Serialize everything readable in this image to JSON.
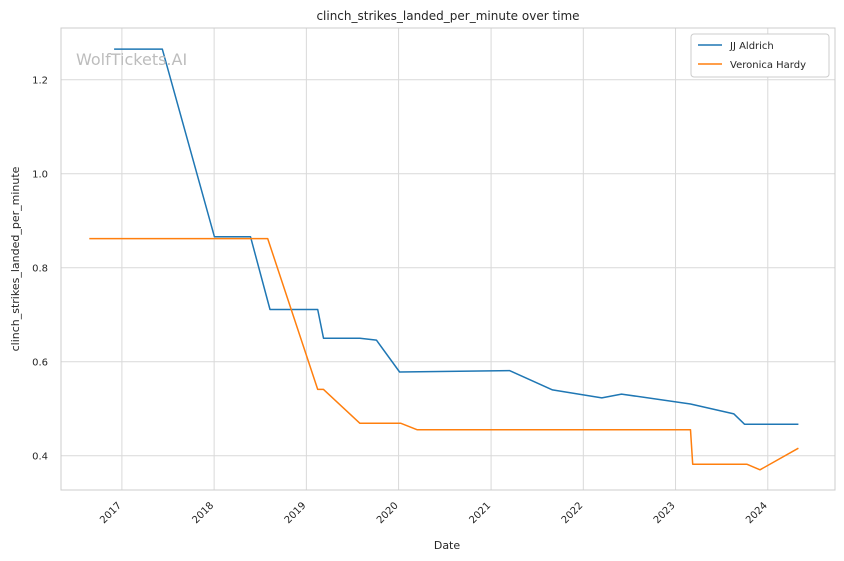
{
  "chart_data": {
    "type": "line",
    "title": "clinch_strikes_landed_per_minute over time",
    "xlabel": "Date",
    "ylabel": "clinch_strikes_landed_per_minute",
    "watermark": "WolfTickets.AI",
    "x_ticks": [
      "2017",
      "2018",
      "2019",
      "2020",
      "2021",
      "2022",
      "2023",
      "2024"
    ],
    "y_ticks": [
      "0.4",
      "0.6",
      "0.8",
      "1.0",
      "1.2"
    ],
    "xlim": [
      "2016-05-05",
      "2024-09-23"
    ],
    "ylim": [
      0.327,
      1.31
    ],
    "grid": true,
    "legend_position": "top-right",
    "series": [
      {
        "name": "JJ Aldrich",
        "color": "#1f77b4",
        "points": [
          [
            "2016-12-01",
            1.265
          ],
          [
            "2017-06-10",
            1.265
          ],
          [
            "2018-01-02",
            0.866
          ],
          [
            "2018-05-25",
            0.866
          ],
          [
            "2018-08-10",
            0.711
          ],
          [
            "2019-02-15",
            0.711
          ],
          [
            "2019-03-10",
            0.65
          ],
          [
            "2019-08-01",
            0.65
          ],
          [
            "2019-10-05",
            0.646
          ],
          [
            "2020-01-05",
            0.578
          ],
          [
            "2021-03-15",
            0.581
          ],
          [
            "2021-09-01",
            0.54
          ],
          [
            "2022-03-15",
            0.523
          ],
          [
            "2022-06-01",
            0.531
          ],
          [
            "2023-03-01",
            0.51
          ],
          [
            "2023-08-20",
            0.489
          ],
          [
            "2023-10-01",
            0.467
          ],
          [
            "2024-05-01",
            0.467
          ]
        ]
      },
      {
        "name": "Veronica Hardy",
        "color": "#ff7f0e",
        "points": [
          [
            "2016-08-25",
            0.862
          ],
          [
            "2018-08-01",
            0.862
          ],
          [
            "2019-02-15",
            0.541
          ],
          [
            "2019-03-10",
            0.541
          ],
          [
            "2019-08-01",
            0.469
          ],
          [
            "2020-01-10",
            0.469
          ],
          [
            "2020-03-15",
            0.455
          ],
          [
            "2023-03-01",
            0.455
          ],
          [
            "2023-03-10",
            0.382
          ],
          [
            "2023-10-10",
            0.382
          ],
          [
            "2023-12-01",
            0.37
          ],
          [
            "2024-05-01",
            0.416
          ]
        ]
      }
    ]
  }
}
